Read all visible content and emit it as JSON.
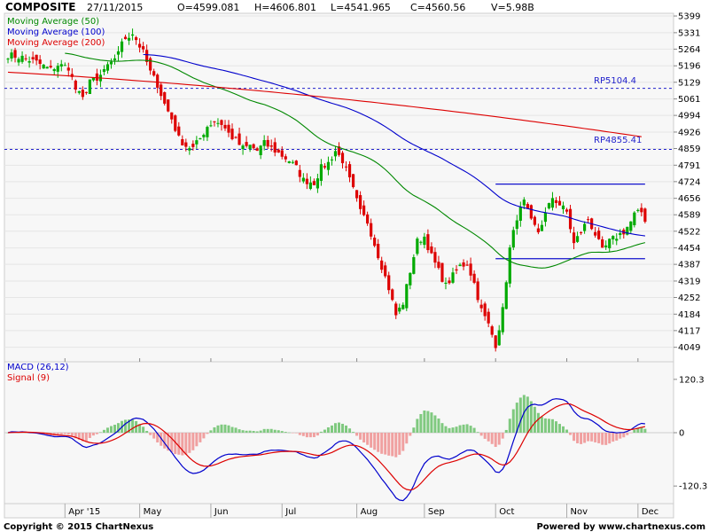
{
  "header": {
    "symbol": "COMPOSITE",
    "date": "27/11/2015",
    "open": "O=4599.081",
    "high": "H=4606.801",
    "low": "L=4541.965",
    "close": "C=4560.56",
    "volume": "V=5.98B"
  },
  "legend": [
    {
      "label": "Moving Average (50)",
      "color": "#008800"
    },
    {
      "label": "Moving Average (100)",
      "color": "#0000cc"
    },
    {
      "label": "Moving Average (200)",
      "color": "#dd0000"
    }
  ],
  "annotations": [
    {
      "label": "RP5104.4",
      "value": 5104.4,
      "color": "#2222cc",
      "style": "dashed"
    },
    {
      "label": "RP4855.41",
      "value": 4855.41,
      "color": "#2222cc",
      "style": "dashed"
    }
  ],
  "macd_panel": {
    "legend": [
      {
        "label": "MACD (26,12)",
        "color": "#0000cc"
      },
      {
        "label": "Signal (9)",
        "color": "#dd0000"
      }
    ],
    "y_ticks": [
      "120.3",
      "0",
      "-120.3"
    ]
  },
  "x_ticks": [
    "Apr '15",
    "May",
    "Jun",
    "Jul",
    "Aug",
    "Sep",
    "Oct",
    "Nov",
    "Dec"
  ],
  "footer": {
    "left": "Copyright © 2015 ChartNexus",
    "right": "Powered by www.chartnexus.com"
  },
  "colors": {
    "up": "#00aa00",
    "down": "#dd0000",
    "ma50": "#008800",
    "ma100": "#0000cc",
    "ma200": "#dd0000",
    "grid": "#dddddd"
  },
  "chart_data": {
    "type": "candlestick",
    "title": "",
    "y_ticks": [
      5399,
      5331,
      5264,
      5196,
      5129,
      5061,
      4994,
      4926,
      4859,
      4791,
      4724,
      4656,
      4589,
      4522,
      4454,
      4387,
      4319,
      4252,
      4184,
      4117,
      4049
    ],
    "ylim": [
      3990,
      5410
    ],
    "month_days": [
      [
        "Apr '15",
        0
      ],
      [
        "May",
        21
      ],
      [
        "Jun",
        41
      ],
      [
        "Jul",
        61
      ],
      [
        "Aug",
        82
      ],
      [
        "Sep",
        101
      ],
      [
        "Oct",
        121
      ],
      [
        "Nov",
        141
      ],
      [
        "Dec",
        161
      ]
    ],
    "x_range_days": [
      -17,
      171
    ],
    "close_anchors": [
      [
        -16,
        5240
      ],
      [
        -12,
        5230
      ],
      [
        -8,
        5210
      ],
      [
        -4,
        5180
      ],
      [
        -2,
        5200
      ],
      [
        1,
        5190
      ],
      [
        3,
        5100
      ],
      [
        5,
        5060
      ],
      [
        7,
        5140
      ],
      [
        9,
        5130
      ],
      [
        11,
        5180
      ],
      [
        13,
        5200
      ],
      [
        15,
        5260
      ],
      [
        17,
        5310
      ],
      [
        19,
        5330
      ],
      [
        22,
        5250
      ],
      [
        24,
        5170
      ],
      [
        26,
        5120
      ],
      [
        28,
        5040
      ],
      [
        30,
        4980
      ],
      [
        32,
        4900
      ],
      [
        34,
        4870
      ],
      [
        36,
        4860
      ],
      [
        38,
        4900
      ],
      [
        40,
        4950
      ],
      [
        42,
        4970
      ],
      [
        44,
        4960
      ],
      [
        46,
        4920
      ],
      [
        48,
        4890
      ],
      [
        50,
        4860
      ],
      [
        52,
        4870
      ],
      [
        54,
        4850
      ],
      [
        56,
        4880
      ],
      [
        58,
        4860
      ],
      [
        60,
        4840
      ],
      [
        63,
        4810
      ],
      [
        65,
        4780
      ],
      [
        67,
        4730
      ],
      [
        70,
        4720
      ],
      [
        72,
        4780
      ],
      [
        74,
        4800
      ],
      [
        76,
        4850
      ],
      [
        78,
        4810
      ],
      [
        81,
        4690
      ],
      [
        83,
        4600
      ],
      [
        85,
        4560
      ],
      [
        87,
        4470
      ],
      [
        89,
        4380
      ],
      [
        91,
        4290
      ],
      [
        93,
        4180
      ],
      [
        95,
        4230
      ],
      [
        97,
        4360
      ],
      [
        99,
        4480
      ],
      [
        101,
        4500
      ],
      [
        103,
        4420
      ],
      [
        105,
        4360
      ],
      [
        107,
        4300
      ],
      [
        109,
        4340
      ],
      [
        111,
        4380
      ],
      [
        113,
        4390
      ],
      [
        115,
        4310
      ],
      [
        117,
        4200
      ],
      [
        119,
        4140
      ],
      [
        121,
        4060
      ],
      [
        123,
        4200
      ],
      [
        125,
        4450
      ],
      [
        127,
        4580
      ],
      [
        129,
        4640
      ],
      [
        131,
        4560
      ],
      [
        133,
        4520
      ],
      [
        135,
        4590
      ],
      [
        137,
        4660
      ],
      [
        139,
        4630
      ],
      [
        141,
        4600
      ],
      [
        143,
        4470
      ],
      [
        145,
        4520
      ],
      [
        147,
        4570
      ],
      [
        149,
        4510
      ],
      [
        151,
        4440
      ],
      [
        153,
        4480
      ],
      [
        155,
        4500
      ],
      [
        157,
        4520
      ],
      [
        159,
        4560
      ],
      [
        160,
        4590
      ],
      [
        162,
        4600
      ],
      [
        163,
        4570
      ]
    ],
    "resistance_box": {
      "top": 4714,
      "bottom": 4410,
      "from_day": 121,
      "to_day": 163
    },
    "ma200_line": {
      "from": [
        -16,
        5170
      ],
      "to": [
        163,
        4905
      ]
    },
    "macd_ylim": [
      -160,
      160
    ],
    "macd_tick_values": [
      120.3,
      0,
      -120.3
    ]
  }
}
